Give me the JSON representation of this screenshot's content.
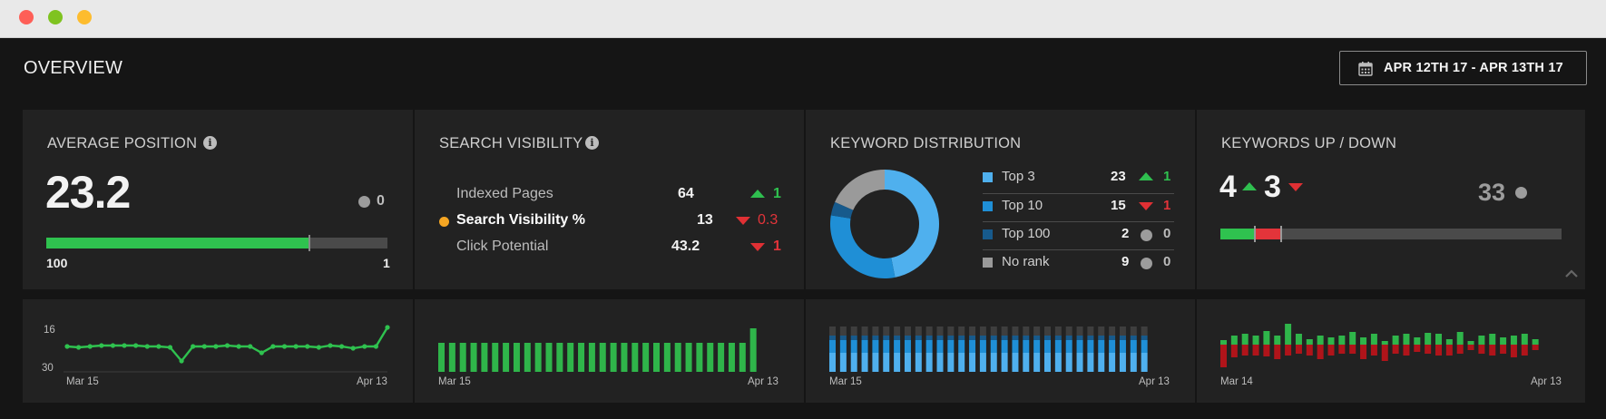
{
  "window": {
    "dots": [
      "close",
      "minimize",
      "zoom"
    ]
  },
  "header": {
    "title": "OVERVIEW",
    "date_range": "APR 12TH 17 - APR 13TH 17"
  },
  "avg_position": {
    "title": "AVERAGE POSITION",
    "value": "23.2",
    "change": "0",
    "progress": 0.77,
    "min_label": "100",
    "max_label": "1",
    "chart": {
      "y_top": "16",
      "y_bottom": "30",
      "x_start": "Mar 15",
      "x_end": "Apr 13"
    }
  },
  "search_visibility": {
    "title": "SEARCH VISIBILITY",
    "rows": [
      {
        "label": "Indexed Pages",
        "value": "64",
        "change": "1",
        "dir": "up"
      },
      {
        "label": "Search Visibility %",
        "value": "13",
        "change": "0.3",
        "dir": "down"
      },
      {
        "label": "Click Potential",
        "value": "43.2",
        "change": "1",
        "dir": "down"
      }
    ],
    "chart": {
      "x_start": "Mar 15",
      "x_end": "Apr 13"
    }
  },
  "keyword_distribution": {
    "title": "KEYWORD DISTRIBUTION",
    "rows": [
      {
        "label": "Top 3",
        "value": "23",
        "change": "1",
        "dir": "up",
        "color": "#4fb0ee"
      },
      {
        "label": "Top 10",
        "value": "15",
        "change": "1",
        "dir": "down",
        "color": "#1f8fd6"
      },
      {
        "label": "Top 100",
        "value": "2",
        "change": "0",
        "dir": "none",
        "color": "#175a8c"
      },
      {
        "label": "No rank",
        "value": "9",
        "change": "0",
        "dir": "none",
        "color": "#9a9a9a"
      }
    ],
    "chart": {
      "x_start": "Mar 15",
      "x_end": "Apr 13"
    }
  },
  "keywords_updown": {
    "title": "KEYWORDS UP / DOWN",
    "up": "4",
    "down": "3",
    "unchanged": "33",
    "chart": {
      "x_start": "Mar 14",
      "x_end": "Apr 13"
    }
  },
  "colors": {
    "green": "#2fc24f",
    "red": "#e3343a",
    "blue_light": "#4fb0ee",
    "blue": "#1f8fd6",
    "blue_dark": "#175a8c"
  },
  "icons": [
    "calendar-icon",
    "info-icon",
    "chevron-up-icon"
  ]
}
